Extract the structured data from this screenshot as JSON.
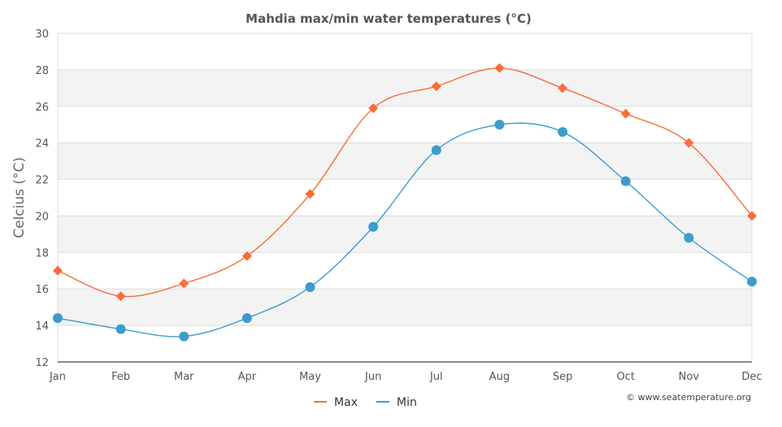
{
  "chart_data": {
    "type": "line",
    "title": "Mahdia max/min water temperatures (°C)",
    "xlabel": "",
    "ylabel": "Celcius (°C)",
    "categories": [
      "Jan",
      "Feb",
      "Mar",
      "Apr",
      "May",
      "Jun",
      "Jul",
      "Aug",
      "Sep",
      "Oct",
      "Nov",
      "Dec"
    ],
    "ylim": [
      12,
      30
    ],
    "yticks": [
      12,
      14,
      16,
      18,
      20,
      22,
      24,
      26,
      28,
      30
    ],
    "series": [
      {
        "name": "Max",
        "color": "#f96d3a",
        "marker": "diamond",
        "values": [
          17.0,
          15.6,
          16.3,
          17.8,
          21.2,
          25.9,
          27.1,
          28.1,
          27.0,
          25.6,
          24.0,
          20.0
        ]
      },
      {
        "name": "Min",
        "color": "#3d9ccf",
        "marker": "circle",
        "values": [
          14.4,
          13.8,
          13.4,
          14.4,
          16.1,
          19.4,
          23.6,
          25.0,
          24.6,
          21.9,
          18.8,
          16.4
        ]
      }
    ],
    "legend": "bottom-center",
    "credit": "© www.seatemperature.org"
  }
}
